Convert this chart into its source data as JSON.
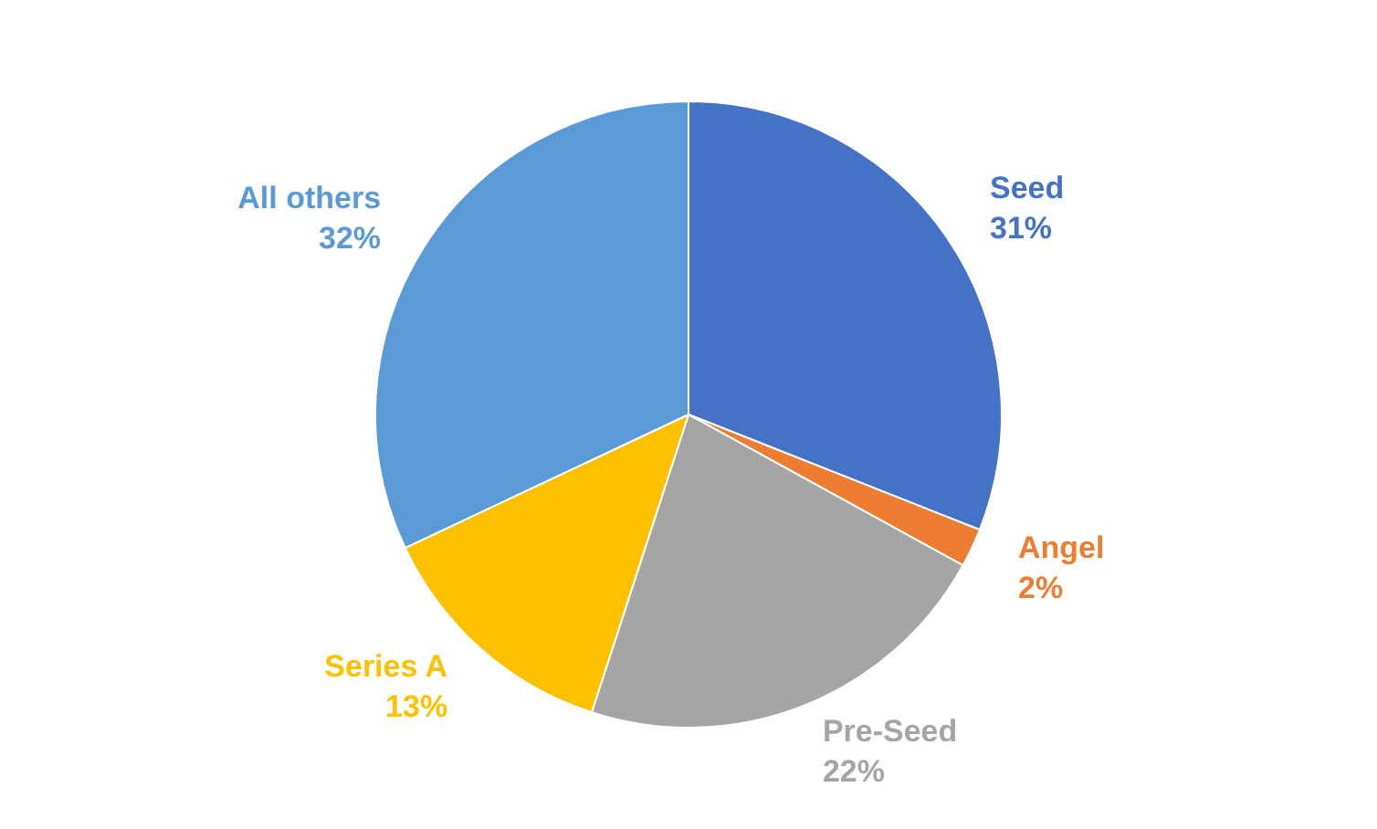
{
  "chart_data": {
    "type": "pie",
    "categories": [
      "Seed",
      "Angel",
      "Pre-Seed",
      "Series A",
      "All others"
    ],
    "values": [
      31,
      2,
      22,
      13,
      32
    ],
    "value_labels": [
      "31%",
      "2%",
      "22%",
      "13%",
      "32%"
    ],
    "colors": [
      "#4472c4",
      "#ed7d31",
      "#a5a5a5",
      "#ffc000",
      "#5b9bd5"
    ],
    "legend": false
  }
}
